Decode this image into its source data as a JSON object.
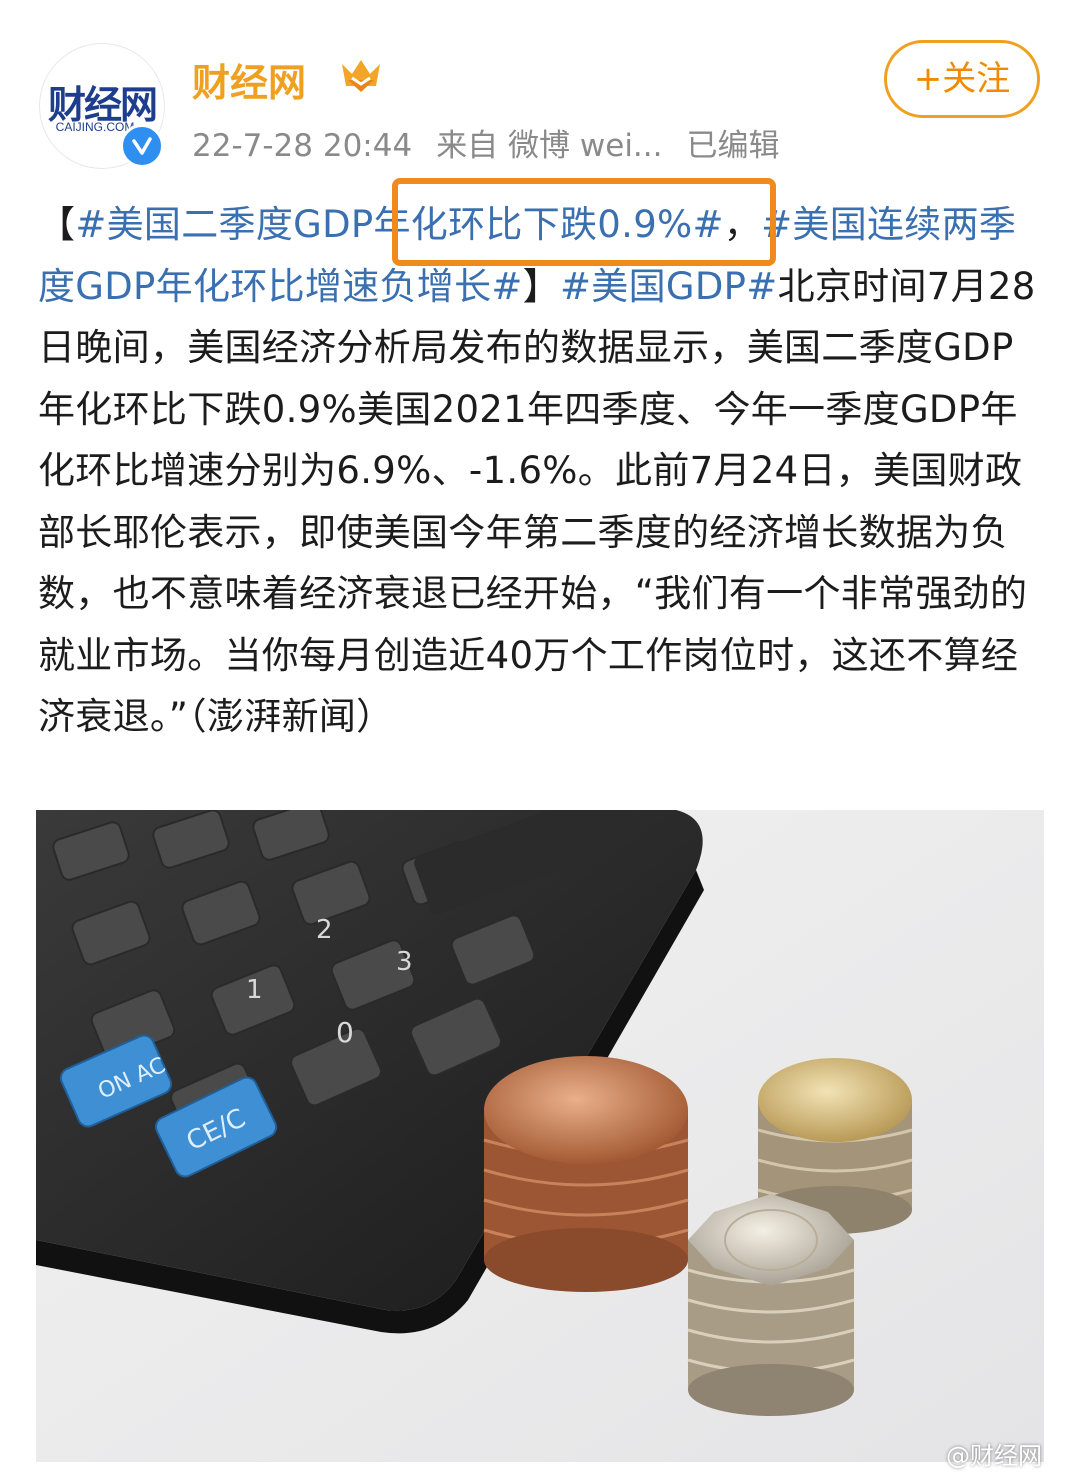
{
  "account": {
    "name": "财经网",
    "avatar_logo": "财经网",
    "avatar_sub": "CAIJING.COM",
    "timestamp": "22-7-28 20:44",
    "source": "来自 微博 wei...",
    "edited": "已编辑",
    "follow_label": "+关注"
  },
  "post": {
    "bracket_open": "【",
    "tag1": "#美国二季度GDP年化环比下跌0.9%#",
    "sep": "，",
    "tag2": "#美国连续两季度GDP年化环比增速负增长#",
    "bracket_close": "】",
    "tag3": "#美国GDP#",
    "body": "北京时间7月28日晚间，美国经济分析局发布的数据显示，美国二季度GDP年化环比下跌0.9%美国2021年四季度、今年一季度GDP年化环比增速分别为6.9%、-1.6%。此前7月24日，美国财政部长耶伦表示，即使美国今年第二季度的经济增长数据为负数，也不意味着经济衰退已经开始，“我们有一个非常强劲的就业市场。当你每月创造近40万个工作岗位时，这还不算经济衰退。”（澎湃新闻）"
  },
  "image": {
    "keys": [
      "ON AC",
      "CE/C",
      "0",
      "1",
      "2",
      "3"
    ]
  },
  "watermark": "@财经网",
  "colors": {
    "accent": "#f0a020",
    "tag": "#3a6fb0",
    "highlight": "#f08a1c"
  }
}
